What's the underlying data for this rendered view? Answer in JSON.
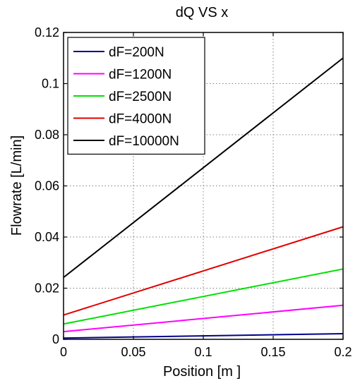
{
  "chart_data": {
    "type": "line",
    "title": "dQ VS x",
    "xlabel": "Position  [m ]",
    "ylabel": "Flowrate  [L/min]",
    "xlim": [
      0,
      0.2
    ],
    "ylim": [
      0,
      0.12
    ],
    "x_ticks": [
      0,
      0.05,
      0.1,
      0.15,
      0.2
    ],
    "x_tick_labels": [
      "0",
      "0.05",
      "0.1",
      "0.15",
      "0.2"
    ],
    "y_ticks": [
      0,
      0.02,
      0.04,
      0.06,
      0.08,
      0.1,
      0.12
    ],
    "y_tick_labels": [
      "0",
      "0.02",
      "0.04",
      "0.06",
      "0.08",
      "0.1",
      "0.12"
    ],
    "grid": true,
    "legend_position": "top-left",
    "x": [
      0,
      0.2
    ],
    "series": [
      {
        "name": "dF=200N",
        "color": "#00008b",
        "values": [
          0.0005,
          0.0022
        ]
      },
      {
        "name": "dF=1200N",
        "color": "#ff00ff",
        "values": [
          0.003,
          0.0133
        ]
      },
      {
        "name": "dF=2500N",
        "color": "#00e000",
        "values": [
          0.006,
          0.0275
        ]
      },
      {
        "name": "dF=4000N",
        "color": "#e00000",
        "values": [
          0.0095,
          0.044
        ]
      },
      {
        "name": "dF=10000N",
        "color": "#000000",
        "values": [
          0.0242,
          0.11
        ]
      }
    ]
  }
}
